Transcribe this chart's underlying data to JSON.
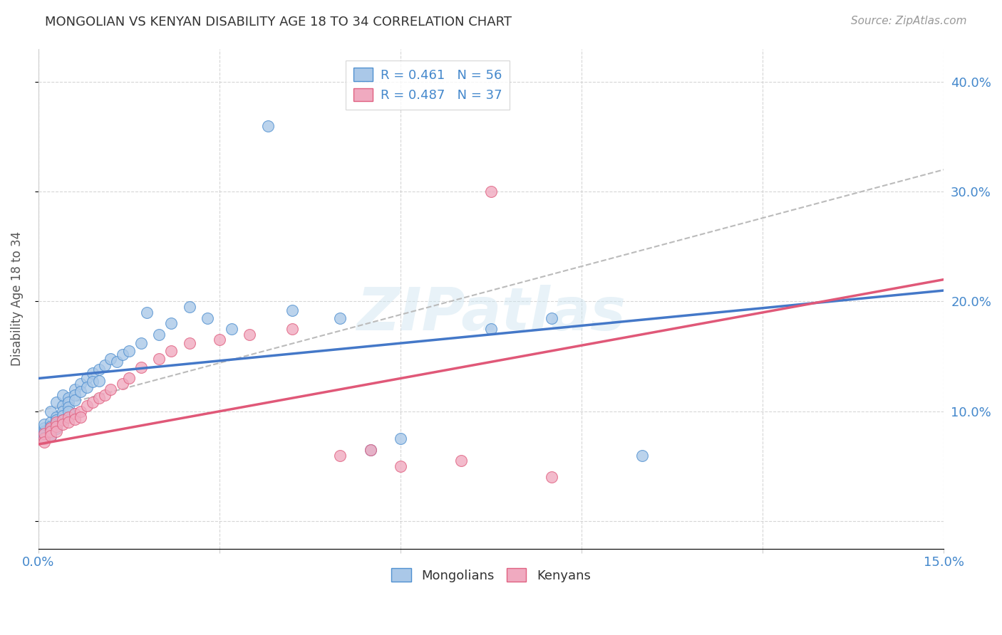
{
  "title": "MONGOLIAN VS KENYAN DISABILITY AGE 18 TO 34 CORRELATION CHART",
  "source": "Source: ZipAtlas.com",
  "ylabel": "Disability Age 18 to 34",
  "xlim": [
    0.0,
    0.15
  ],
  "ylim": [
    -0.025,
    0.43
  ],
  "xtick_positions": [
    0.0,
    0.03,
    0.06,
    0.09,
    0.12,
    0.15
  ],
  "xtick_labels": [
    "0.0%",
    "",
    "",
    "",
    "",
    "15.0%"
  ],
  "ytick_positions": [
    0.0,
    0.1,
    0.2,
    0.3,
    0.4
  ],
  "ytick_labels": [
    "",
    "10.0%",
    "20.0%",
    "30.0%",
    "40.0%"
  ],
  "mongolian_fill": "#aac8e8",
  "mongolian_edge": "#5090d0",
  "kenyan_fill": "#f0aac0",
  "kenyan_edge": "#e06080",
  "mongolian_line_color": "#4478c8",
  "kenyan_line_color": "#e05878",
  "conf_line_color": "#bbbbbb",
  "R_mongolian": 0.461,
  "N_mongolian": 56,
  "R_kenyan": 0.487,
  "N_kenyan": 37,
  "text_color": "#4488cc",
  "watermark": "ZIPatlas",
  "background_color": "#ffffff",
  "grid_color": "#cccccc",
  "title_color": "#333333",
  "source_color": "#999999",
  "ylabel_color": "#555555",
  "mongolian_x": [
    0.001,
    0.001,
    0.001,
    0.001,
    0.001,
    0.002,
    0.002,
    0.002,
    0.002,
    0.002,
    0.002,
    0.003,
    0.003,
    0.003,
    0.003,
    0.003,
    0.004,
    0.004,
    0.004,
    0.004,
    0.004,
    0.005,
    0.005,
    0.005,
    0.005,
    0.006,
    0.006,
    0.006,
    0.007,
    0.007,
    0.008,
    0.008,
    0.009,
    0.009,
    0.01,
    0.01,
    0.011,
    0.012,
    0.013,
    0.014,
    0.015,
    0.017,
    0.018,
    0.02,
    0.022,
    0.025,
    0.028,
    0.032,
    0.038,
    0.042,
    0.05,
    0.055,
    0.06,
    0.075,
    0.085,
    0.1
  ],
  "mongolian_y": [
    0.085,
    0.082,
    0.079,
    0.076,
    0.088,
    0.09,
    0.086,
    0.083,
    0.08,
    0.077,
    0.1,
    0.095,
    0.092,
    0.088,
    0.084,
    0.108,
    0.105,
    0.1,
    0.096,
    0.092,
    0.115,
    0.112,
    0.108,
    0.104,
    0.1,
    0.12,
    0.115,
    0.11,
    0.125,
    0.118,
    0.13,
    0.122,
    0.135,
    0.127,
    0.138,
    0.128,
    0.142,
    0.148,
    0.145,
    0.152,
    0.155,
    0.162,
    0.19,
    0.17,
    0.18,
    0.195,
    0.185,
    0.175,
    0.36,
    0.192,
    0.185,
    0.065,
    0.075,
    0.175,
    0.185,
    0.06
  ],
  "kenyan_x": [
    0.001,
    0.001,
    0.001,
    0.002,
    0.002,
    0.002,
    0.003,
    0.003,
    0.003,
    0.004,
    0.004,
    0.005,
    0.005,
    0.006,
    0.006,
    0.007,
    0.007,
    0.008,
    0.009,
    0.01,
    0.011,
    0.012,
    0.014,
    0.015,
    0.017,
    0.02,
    0.022,
    0.025,
    0.03,
    0.035,
    0.042,
    0.05,
    0.055,
    0.06,
    0.07,
    0.075,
    0.085
  ],
  "kenyan_y": [
    0.075,
    0.08,
    0.072,
    0.085,
    0.082,
    0.078,
    0.09,
    0.086,
    0.082,
    0.092,
    0.088,
    0.095,
    0.09,
    0.098,
    0.093,
    0.1,
    0.095,
    0.105,
    0.108,
    0.112,
    0.115,
    0.12,
    0.125,
    0.13,
    0.14,
    0.148,
    0.155,
    0.162,
    0.165,
    0.17,
    0.175,
    0.06,
    0.065,
    0.05,
    0.055,
    0.3,
    0.04
  ]
}
